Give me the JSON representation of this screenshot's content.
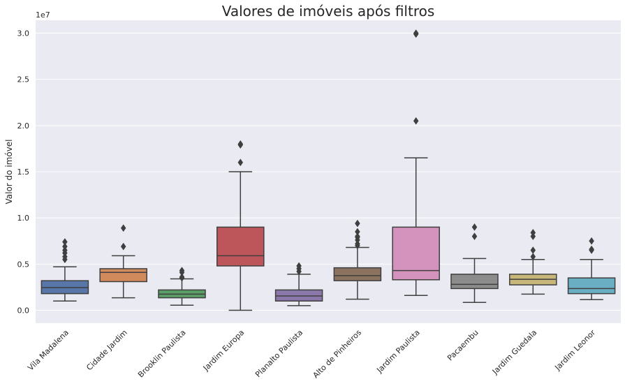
{
  "chart_data": {
    "type": "box",
    "title": "Valores de imóveis após filtros",
    "ylabel": "Valor do imóvel",
    "xlabel": "",
    "y_offset_label": "1e7",
    "y_scale": 10000000,
    "ylim": [
      -0.14,
      3.14
    ],
    "yticks": [
      0.0,
      0.5,
      1.0,
      1.5,
      2.0,
      2.5,
      3.0
    ],
    "ytick_labels": [
      "0.0",
      "0.5",
      "1.0",
      "1.5",
      "2.0",
      "2.5",
      "3.0"
    ],
    "grid": true,
    "categories": [
      "Vila Madalena",
      "Cidade Jardim",
      "Brooklin Paulista",
      "Jardim Europa",
      "Planalto Paulista",
      "Alto de Pinheiros",
      "Jardim Paulista",
      "Pacaembu",
      "Jardim Guedala",
      "Jardim Leonor"
    ],
    "colors": [
      "#5876a8",
      "#d18a5c",
      "#5b9e68",
      "#bc565b",
      "#8a78aa",
      "#8c735f",
      "#d493bd",
      "#8c8c8c",
      "#c7b67a",
      "#69aec3"
    ],
    "boxes": [
      {
        "whisker_low": 0.1,
        "q1": 0.18,
        "median": 0.245,
        "q3": 0.32,
        "whisker_high": 0.47,
        "outliers": [
          0.55,
          0.58,
          0.62,
          0.65,
          0.69,
          0.74
        ]
      },
      {
        "whisker_low": 0.135,
        "q1": 0.31,
        "median": 0.41,
        "q3": 0.45,
        "whisker_high": 0.59,
        "outliers": [
          0.69,
          0.89
        ]
      },
      {
        "whisker_low": 0.055,
        "q1": 0.135,
        "median": 0.175,
        "q3": 0.22,
        "whisker_high": 0.34,
        "outliers": [
          0.35,
          0.36,
          0.41,
          0.43
        ]
      },
      {
        "whisker_low": 0.0,
        "q1": 0.48,
        "median": 0.59,
        "q3": 0.9,
        "whisker_high": 1.5,
        "outliers": [
          1.6,
          1.79,
          1.8
        ]
      },
      {
        "whisker_low": 0.05,
        "q1": 0.1,
        "median": 0.155,
        "q3": 0.22,
        "whisker_high": 0.39,
        "outliers": [
          0.42,
          0.45,
          0.48
        ]
      },
      {
        "whisker_low": 0.12,
        "q1": 0.32,
        "median": 0.375,
        "q3": 0.46,
        "whisker_high": 0.68,
        "outliers": [
          0.7,
          0.72,
          0.76,
          0.79,
          0.8,
          0.85,
          0.94
        ]
      },
      {
        "whisker_low": 0.16,
        "q1": 0.33,
        "median": 0.43,
        "q3": 0.9,
        "whisker_high": 1.65,
        "outliers": [
          2.05,
          2.99,
          3.0
        ]
      },
      {
        "whisker_low": 0.085,
        "q1": 0.235,
        "median": 0.28,
        "q3": 0.39,
        "whisker_high": 0.56,
        "outliers": [
          0.8,
          0.9
        ]
      },
      {
        "whisker_low": 0.175,
        "q1": 0.275,
        "median": 0.335,
        "q3": 0.39,
        "whisker_high": 0.55,
        "outliers": [
          0.58,
          0.65,
          0.8,
          0.84
        ]
      },
      {
        "whisker_low": 0.115,
        "q1": 0.18,
        "median": 0.235,
        "q3": 0.35,
        "whisker_high": 0.55,
        "outliers": [
          0.65,
          0.66,
          0.75
        ]
      }
    ]
  }
}
